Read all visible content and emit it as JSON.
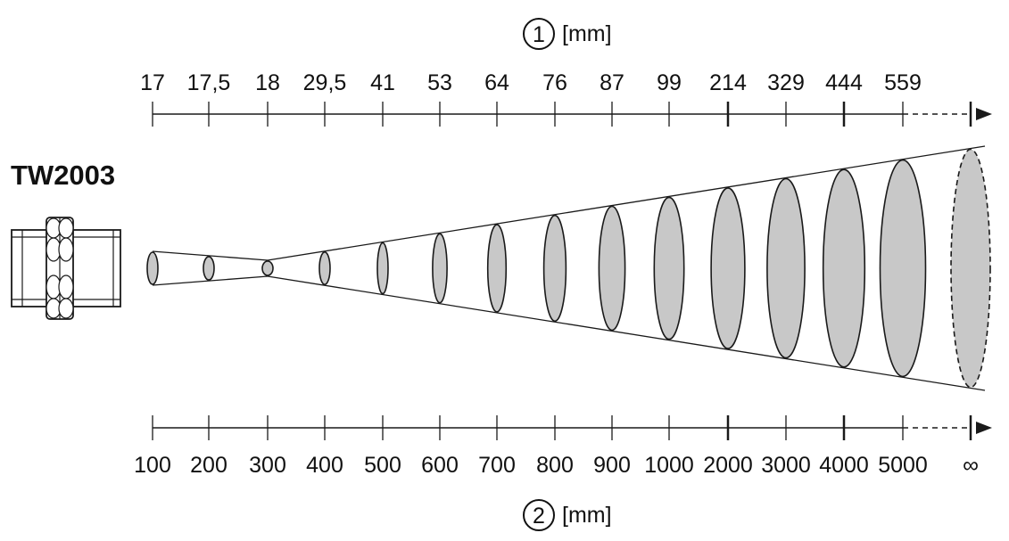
{
  "model": "TW2003",
  "top_axis": {
    "marker": "1",
    "unit": "[mm]",
    "labels": [
      "17",
      "17,5",
      "18",
      "29,5",
      "41",
      "53",
      "64",
      "76",
      "87",
      "99",
      "214",
      "329",
      "444",
      "559"
    ]
  },
  "bottom_axis": {
    "marker": "2",
    "unit": "[mm]",
    "labels": [
      "100",
      "200",
      "300",
      "400",
      "500",
      "600",
      "700",
      "800",
      "900",
      "1000",
      "2000",
      "3000",
      "4000",
      "5000",
      "∞"
    ]
  },
  "chart_data": {
    "type": "diagram",
    "title": "",
    "model": "TW2003",
    "description_axis_1": "[mm]",
    "description_axis_2": "[mm]",
    "distance_mm": [
      100,
      200,
      300,
      400,
      500,
      600,
      700,
      800,
      900,
      1000,
      2000,
      3000,
      4000,
      5000,
      "∞"
    ],
    "spot_diameter_mm": [
      17,
      17.5,
      18,
      29.5,
      41,
      53,
      64,
      76,
      87,
      99,
      214,
      329,
      444,
      559
    ]
  },
  "colors": {
    "spot_fill": "#c8c8c8",
    "line": "#1a1a1a",
    "background": "#ffffff"
  }
}
